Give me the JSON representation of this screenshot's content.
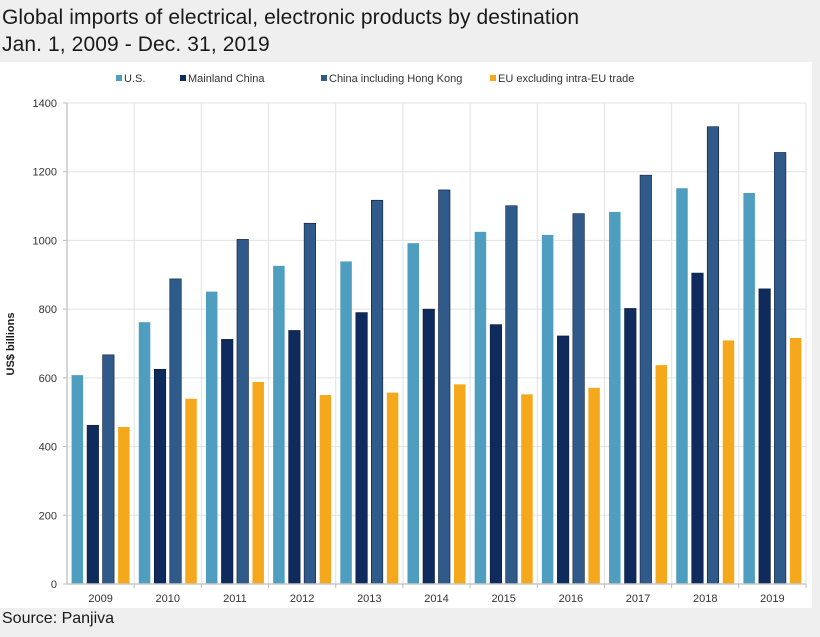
{
  "title_line1": "Global imports of electrical, electronic products by destination",
  "title_line2": "Jan. 1, 2009 - Dec. 31, 2019",
  "source": "Source: Panjiva",
  "chart_data": {
    "type": "bar",
    "title": "Global imports of electrical, electronic products by destination, Jan. 1, 2009 - Dec. 31, 2019",
    "xlabel": "",
    "ylabel": "US$ billions",
    "ylim": [
      0,
      1400
    ],
    "yticks": [
      0,
      200,
      400,
      600,
      800,
      1000,
      1200,
      1400
    ],
    "grid": true,
    "legend_position": "top",
    "categories": [
      "2009",
      "2010",
      "2011",
      "2012",
      "2013",
      "2014",
      "2015",
      "2016",
      "2017",
      "2018",
      "2019"
    ],
    "series": [
      {
        "name": "U.S.",
        "color": "#4f9ec0",
        "values": [
          608,
          762,
          851,
          926,
          939,
          992,
          1025,
          1016,
          1083,
          1152,
          1138
        ]
      },
      {
        "name": "Mainland China",
        "color": "#0f2a5c",
        "values": [
          462,
          625,
          712,
          738,
          790,
          800,
          755,
          722,
          802,
          905,
          859
        ]
      },
      {
        "name": "China including Hong Kong",
        "color": "#2f5a8a",
        "values": [
          667,
          888,
          1003,
          1050,
          1117,
          1147,
          1101,
          1078,
          1190,
          1331,
          1256
        ]
      },
      {
        "name": "EU excluding intra-EU trade",
        "color": "#f6a81c",
        "values": [
          457,
          539,
          588,
          550,
          557,
          581,
          552,
          571,
          637,
          709,
          716
        ]
      }
    ]
  }
}
